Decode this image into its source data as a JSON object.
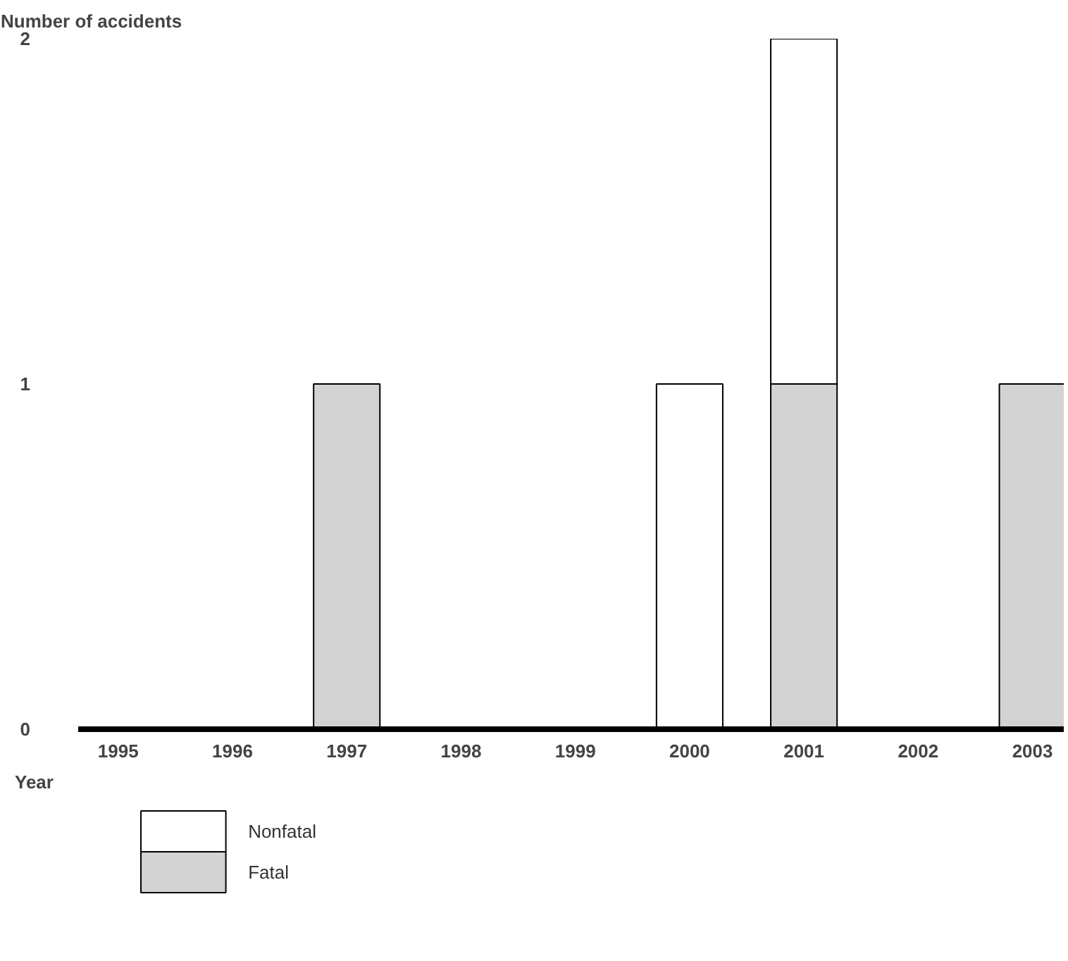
{
  "chart_data": {
    "type": "bar",
    "stacked": true,
    "ylabel": "Number of accidents",
    "xlabel": "Year",
    "categories": [
      "1995",
      "1996",
      "1997",
      "1998",
      "1999",
      "2000",
      "2001",
      "2002",
      "2003"
    ],
    "series": [
      {
        "name": "Fatal",
        "color": "#d3d3d3",
        "values": [
          0,
          0,
          1,
          0,
          0,
          0,
          1,
          0,
          1
        ]
      },
      {
        "name": "Nonfatal",
        "color": "#ffffff",
        "values": [
          0,
          0,
          0,
          0,
          0,
          1,
          1,
          0,
          0
        ]
      }
    ],
    "ylim": [
      0,
      2
    ],
    "yticks": [
      0,
      1,
      2
    ],
    "grid": false,
    "legend": "bottom"
  }
}
